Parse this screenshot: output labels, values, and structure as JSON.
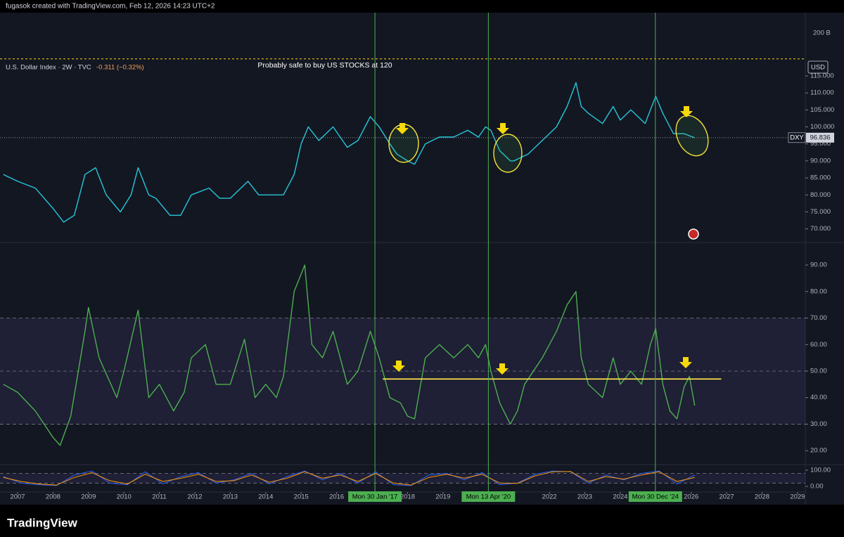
{
  "header": {
    "text": "fugasok created with TradingView.com, Feb 12, 2026 14:23 UTC+2"
  },
  "footer": {
    "logo": "TradingView"
  },
  "chart_data": [
    {
      "type": "line",
      "title": "U.S. Dollar Index · 2W · TVC",
      "change_label": "-0.311 (−0.32%)",
      "annotation": "Probably safe to buy US STOCKS at 120",
      "currency": "USD",
      "volume_label": "200 B",
      "hline": {
        "value": 120
      },
      "last_price": {
        "symbol": "DXY",
        "value": 96.836
      },
      "x": [
        2006.6,
        2007.0,
        2007.5,
        2008.0,
        2008.3,
        2008.6,
        2008.9,
        2009.2,
        2009.5,
        2009.9,
        2010.2,
        2010.4,
        2010.7,
        2010.9,
        2011.3,
        2011.6,
        2011.9,
        2012.4,
        2012.7,
        2013.0,
        2013.5,
        2013.8,
        2014.3,
        2014.5,
        2014.8,
        2015.0,
        2015.2,
        2015.5,
        2015.9,
        2016.3,
        2016.6,
        2016.95,
        2017.2,
        2017.5,
        2017.7,
        2018.0,
        2018.2,
        2018.5,
        2018.9,
        2019.3,
        2019.7,
        2020.0,
        2020.2,
        2020.35,
        2020.6,
        2020.9,
        2021.0,
        2021.4,
        2021.8,
        2022.2,
        2022.5,
        2022.75,
        2022.9,
        2023.1,
        2023.5,
        2023.8,
        2024.0,
        2024.3,
        2024.7,
        2025.0,
        2025.2,
        2025.5,
        2025.8,
        2026.1
      ],
      "series": [
        {
          "color": "#26c6da",
          "values": [
            86,
            84,
            82,
            76,
            72,
            74,
            86,
            88,
            80,
            75,
            80,
            88,
            80,
            79,
            74,
            74,
            80,
            82,
            79,
            79,
            84,
            80,
            80,
            80,
            86,
            95,
            100,
            96,
            100,
            94,
            96,
            103,
            100,
            95,
            92,
            90,
            89,
            95,
            97,
            97,
            99,
            97,
            100,
            99,
            93,
            90,
            90,
            92,
            96,
            100,
            106,
            113,
            106,
            104,
            101,
            106,
            102,
            105,
            101,
            109,
            104,
            98,
            98,
            96.8
          ]
        }
      ],
      "xlim": [
        2006.504,
        2029.22
      ],
      "ylim": [
        66,
        133.6
      ],
      "yticks": [
        {
          "value": 70,
          "label": "70.000"
        },
        {
          "value": 75,
          "label": "75.000"
        },
        {
          "value": 80,
          "label": "80.000"
        },
        {
          "value": 85,
          "label": "85.000"
        },
        {
          "value": 90,
          "label": "90.000"
        },
        {
          "value": 95,
          "label": "95.000"
        },
        {
          "value": 100,
          "label": "100.000"
        },
        {
          "value": 105,
          "label": "105.000"
        },
        {
          "value": 110,
          "label": "110.000"
        },
        {
          "value": 115,
          "label": "115.000"
        }
      ]
    },
    {
      "type": "line",
      "band": [
        30,
        70
      ],
      "levels": [
        70,
        50,
        30
      ],
      "trend_line": {
        "value": 47,
        "x": [
          2017.3,
          2026.85
        ]
      },
      "x": [
        2006.6,
        2007.0,
        2007.5,
        2008.0,
        2008.2,
        2008.5,
        2008.9,
        2009.0,
        2009.3,
        2009.8,
        2010.0,
        2010.4,
        2010.7,
        2011.0,
        2011.4,
        2011.7,
        2011.9,
        2012.3,
        2012.6,
        2013.0,
        2013.4,
        2013.7,
        2014.0,
        2014.3,
        2014.5,
        2014.8,
        2015.1,
        2015.3,
        2015.6,
        2015.9,
        2016.3,
        2016.6,
        2016.95,
        2017.2,
        2017.5,
        2017.8,
        2018.0,
        2018.2,
        2018.5,
        2018.9,
        2019.3,
        2019.7,
        2020.0,
        2020.2,
        2020.35,
        2020.6,
        2020.9,
        2021.1,
        2021.3,
        2021.8,
        2022.2,
        2022.5,
        2022.75,
        2022.9,
        2023.1,
        2023.5,
        2023.8,
        2024.0,
        2024.3,
        2024.6,
        2024.85,
        2025.0,
        2025.2,
        2025.4,
        2025.6,
        2025.8,
        2025.95,
        2026.1
      ],
      "series": [
        {
          "color": "#4caf50",
          "values": [
            45,
            42,
            35,
            25,
            22,
            33,
            65,
            74,
            55,
            40,
            50,
            73,
            40,
            45,
            35,
            42,
            55,
            60,
            45,
            45,
            62,
            40,
            45,
            40,
            48,
            80,
            90,
            60,
            55,
            65,
            45,
            50,
            65,
            55,
            40,
            38,
            33,
            32,
            55,
            60,
            55,
            60,
            55,
            60,
            50,
            38,
            30,
            35,
            45,
            55,
            65,
            75,
            80,
            55,
            45,
            40,
            55,
            45,
            50,
            45,
            60,
            66,
            45,
            35,
            32,
            44,
            48,
            37
          ]
        }
      ],
      "xlim": [
        2006.504,
        2029.22
      ],
      "ylim": [
        15,
        98.5
      ],
      "yticks": [
        {
          "value": 20,
          "label": "20.00"
        },
        {
          "value": 30,
          "label": "30.00"
        },
        {
          "value": 40,
          "label": "40.00"
        },
        {
          "value": 50,
          "label": "50.00"
        },
        {
          "value": 60,
          "label": "60.00"
        },
        {
          "value": 70,
          "label": "70.00"
        },
        {
          "value": 80,
          "label": "80.00"
        },
        {
          "value": 90,
          "label": "90.00"
        }
      ]
    },
    {
      "type": "line",
      "band": [
        20,
        80
      ],
      "levels": [
        80,
        20
      ],
      "x": [
        2006.6,
        2007.1,
        2007.6,
        2008.1,
        2008.6,
        2009.1,
        2009.6,
        2010.1,
        2010.6,
        2011.1,
        2011.6,
        2012.1,
        2012.6,
        2013.1,
        2013.6,
        2014.1,
        2014.6,
        2015.1,
        2015.6,
        2016.1,
        2016.6,
        2017.1,
        2017.6,
        2018.1,
        2018.6,
        2019.1,
        2019.6,
        2020.1,
        2020.6,
        2021.1,
        2021.6,
        2022.1,
        2022.6,
        2023.1,
        2023.6,
        2024.1,
        2024.6,
        2025.1,
        2025.6,
        2026.1
      ],
      "series": [
        {
          "color": "#2962ff",
          "values": [
            60,
            20,
            10,
            5,
            70,
            95,
            20,
            10,
            90,
            15,
            60,
            85,
            20,
            40,
            80,
            15,
            60,
            95,
            40,
            80,
            20,
            90,
            10,
            5,
            70,
            80,
            40,
            85,
            10,
            20,
            75,
            95,
            90,
            20,
            70,
            40,
            80,
            95,
            15,
            70
          ]
        },
        {
          "color": "#ff9800",
          "values": [
            55,
            30,
            15,
            8,
            55,
            85,
            35,
            15,
            75,
            30,
            50,
            75,
            30,
            35,
            70,
            25,
            50,
            90,
            50,
            70,
            30,
            80,
            20,
            8,
            55,
            75,
            50,
            75,
            20,
            18,
            65,
            90,
            92,
            30,
            60,
            45,
            70,
            90,
            30,
            55
          ]
        }
      ],
      "xlim": [
        2006.504,
        2029.22
      ],
      "ylim": [
        -35,
        130
      ],
      "yticks": [
        {
          "value": 0,
          "label": "0.00"
        },
        {
          "value": 100,
          "label": "100.00"
        }
      ],
      "xticks": [
        2007,
        2008,
        2009,
        2010,
        2011,
        2012,
        2013,
        2014,
        2015,
        2016,
        2018,
        2019,
        2022,
        2023,
        2024,
        2026,
        2027,
        2028,
        2029
      ],
      "vlines": [
        {
          "value": 2017.08,
          "label": "Mon 30 Jan '17"
        },
        {
          "value": 2020.28,
          "label": "Mon 13 Apr '20"
        },
        {
          "value": 2024.99,
          "label": "Mon 30 Dec '24"
        }
      ]
    }
  ]
}
